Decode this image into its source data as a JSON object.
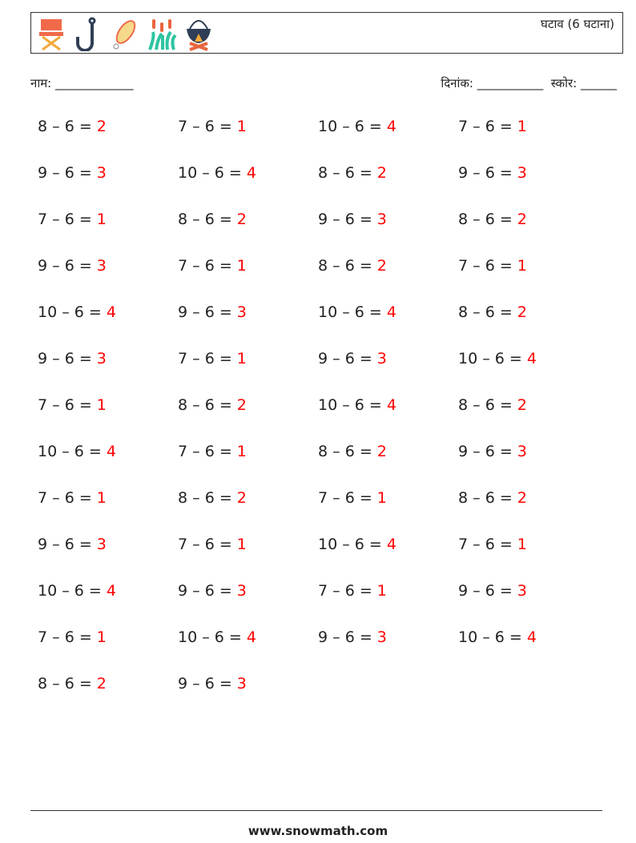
{
  "header": {
    "title": "घटाव (6 घटाना)",
    "icons": [
      "chair-icon",
      "fishing-hook-icon",
      "fishing-lure-icon",
      "cattail-reeds-icon",
      "campfire-pot-icon"
    ]
  },
  "meta": {
    "name_label": "नाम:",
    "name_blank": "_____________",
    "date_label": "दिनांक:",
    "date_blank": "___________",
    "score_label": "स्कोर:",
    "score_blank": "______"
  },
  "problems": [
    [
      "8",
      "6",
      "2"
    ],
    [
      "7",
      "6",
      "1"
    ],
    [
      "10",
      "6",
      "4"
    ],
    [
      "7",
      "6",
      "1"
    ],
    [
      "9",
      "6",
      "3"
    ],
    [
      "10",
      "6",
      "4"
    ],
    [
      "8",
      "6",
      "2"
    ],
    [
      "9",
      "6",
      "3"
    ],
    [
      "7",
      "6",
      "1"
    ],
    [
      "8",
      "6",
      "2"
    ],
    [
      "9",
      "6",
      "3"
    ],
    [
      "8",
      "6",
      "2"
    ],
    [
      "9",
      "6",
      "3"
    ],
    [
      "7",
      "6",
      "1"
    ],
    [
      "8",
      "6",
      "2"
    ],
    [
      "7",
      "6",
      "1"
    ],
    [
      "10",
      "6",
      "4"
    ],
    [
      "9",
      "6",
      "3"
    ],
    [
      "10",
      "6",
      "4"
    ],
    [
      "8",
      "6",
      "2"
    ],
    [
      "9",
      "6",
      "3"
    ],
    [
      "7",
      "6",
      "1"
    ],
    [
      "9",
      "6",
      "3"
    ],
    [
      "10",
      "6",
      "4"
    ],
    [
      "7",
      "6",
      "1"
    ],
    [
      "8",
      "6",
      "2"
    ],
    [
      "10",
      "6",
      "4"
    ],
    [
      "8",
      "6",
      "2"
    ],
    [
      "10",
      "6",
      "4"
    ],
    [
      "7",
      "6",
      "1"
    ],
    [
      "8",
      "6",
      "2"
    ],
    [
      "9",
      "6",
      "3"
    ],
    [
      "7",
      "6",
      "1"
    ],
    [
      "8",
      "6",
      "2"
    ],
    [
      "7",
      "6",
      "1"
    ],
    [
      "8",
      "6",
      "2"
    ],
    [
      "9",
      "6",
      "3"
    ],
    [
      "7",
      "6",
      "1"
    ],
    [
      "10",
      "6",
      "4"
    ],
    [
      "7",
      "6",
      "1"
    ],
    [
      "10",
      "6",
      "4"
    ],
    [
      "9",
      "6",
      "3"
    ],
    [
      "7",
      "6",
      "1"
    ],
    [
      "9",
      "6",
      "3"
    ],
    [
      "7",
      "6",
      "1"
    ],
    [
      "10",
      "6",
      "4"
    ],
    [
      "9",
      "6",
      "3"
    ],
    [
      "10",
      "6",
      "4"
    ],
    [
      "8",
      "6",
      "2"
    ],
    [
      "9",
      "6",
      "3"
    ]
  ],
  "answer_color": "#ff0000",
  "footer": {
    "url": "www.snowmath.com"
  }
}
